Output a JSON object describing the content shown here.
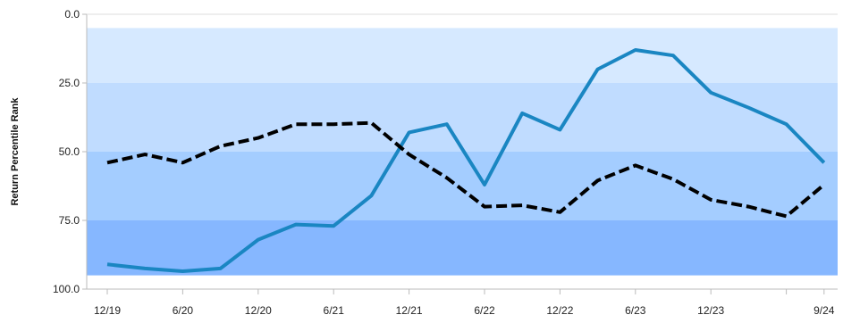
{
  "chart_data": {
    "type": "line",
    "title": "",
    "xlabel": "",
    "ylabel": "Return Percentile Rank",
    "y_reversed": true,
    "ylim": [
      0,
      100
    ],
    "grid": false,
    "y_ticks": [
      "0.0",
      "25.0",
      "50.0",
      "75.0",
      "100.0"
    ],
    "x_tick_labels": [
      "12/19",
      "6/20",
      "12/20",
      "6/21",
      "12/21",
      "6/22",
      "12/22",
      "6/23",
      "12/23",
      "9/24"
    ],
    "x_ticks": [
      "12/19",
      "",
      "6/20",
      "",
      "12/20",
      "",
      "6/21",
      "",
      "12/21",
      "",
      "6/22",
      "",
      "12/22",
      "",
      "6/23",
      "",
      "12/23",
      "",
      "",
      "9/24"
    ],
    "quartile_bands": [
      {
        "from": 5,
        "to": 25,
        "color": "#d6e9ff"
      },
      {
        "from": 25,
        "to": 50,
        "color": "#c0dcff"
      },
      {
        "from": 50,
        "to": 75,
        "color": "#a4cdff"
      },
      {
        "from": 75,
        "to": 95,
        "color": "#86b7ff"
      }
    ],
    "x": [
      "12/19",
      "3/20",
      "6/20",
      "9/20",
      "12/20",
      "3/21",
      "6/21",
      "9/21",
      "12/21",
      "3/22",
      "6/22",
      "9/22",
      "12/22",
      "3/23",
      "6/23",
      "9/23",
      "12/23",
      "3/24",
      "6/24",
      "9/24"
    ],
    "series": [
      {
        "name": "",
        "color": "#1a86c2",
        "style": "solid",
        "values": [
          91,
          92.5,
          93.5,
          92.5,
          82,
          76.5,
          77,
          66,
          43,
          40,
          62,
          36,
          42,
          20,
          13,
          15,
          28.5,
          34,
          40,
          54
        ]
      },
      {
        "name": "",
        "color": "#000000",
        "style": "dashed",
        "values": [
          54,
          51,
          54,
          48,
          45,
          40,
          40,
          39.5,
          51,
          59.5,
          70,
          69.5,
          72,
          60.5,
          55,
          60,
          67.5,
          70,
          73.5,
          62
        ]
      }
    ]
  }
}
